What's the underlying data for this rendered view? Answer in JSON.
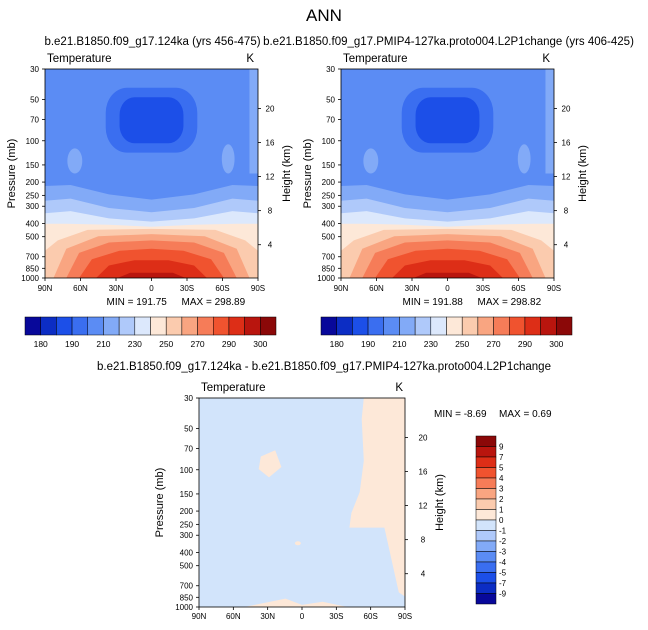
{
  "page_title": "ANN",
  "chart_data": [
    {
      "type": "heatmap",
      "title": "b.e21.B1850.f09_g17.124ka (yrs 456-475)",
      "variable": "Temperature",
      "units": "K",
      "ylabel": "Pressure (mb)",
      "ylabel_right": "Height (km)",
      "x_ticks": [
        "90N",
        "60N",
        "30N",
        "0",
        "30S",
        "60S",
        "90S"
      ],
      "y_ticks": [
        "30",
        "50",
        "70",
        "100",
        "150",
        "200",
        "250",
        "300",
        "400",
        "500",
        "700",
        "850",
        "1000"
      ],
      "height_ticks": [
        "20",
        "16",
        "12",
        "8",
        "4"
      ],
      "min_label": "MIN = 191.75",
      "max_label": "MAX = 298.89",
      "stats": {
        "min": 191.75,
        "max": 298.89
      },
      "colorbar_labels": [
        "180",
        "190",
        "210",
        "230",
        "250",
        "270",
        "290",
        "300"
      ]
    },
    {
      "type": "heatmap",
      "title": "b.e21.B1850.f09_g17.PMIP4-127ka.proto004.L2P1change (yrs 406-425)",
      "variable": "Temperature",
      "units": "K",
      "ylabel": "Pressure (mb)",
      "ylabel_right": "Height (km)",
      "x_ticks": [
        "90N",
        "60N",
        "30N",
        "0",
        "30S",
        "60S",
        "90S"
      ],
      "y_ticks": [
        "30",
        "50",
        "70",
        "100",
        "150",
        "200",
        "250",
        "300",
        "400",
        "500",
        "700",
        "850",
        "1000"
      ],
      "height_ticks": [
        "20",
        "16",
        "12",
        "8",
        "4"
      ],
      "min_label": "MIN = 191.88",
      "max_label": "MAX = 298.82",
      "stats": {
        "min": 191.88,
        "max": 298.82
      },
      "colorbar_labels": [
        "180",
        "190",
        "210",
        "230",
        "250",
        "270",
        "290",
        "300"
      ]
    },
    {
      "type": "heatmap",
      "title": "b.e21.B1850.f09_g17.124ka - b.e21.B1850.f09_g17.PMIP4-127ka.proto004.L2P1change",
      "variable": "Temperature",
      "units": "K",
      "ylabel": "Pressure (mb)",
      "ylabel_right": "Height (km)",
      "x_ticks": [
        "90N",
        "60N",
        "30N",
        "0",
        "30S",
        "60S",
        "90S"
      ],
      "y_ticks": [
        "30",
        "50",
        "70",
        "100",
        "150",
        "200",
        "250",
        "300",
        "400",
        "500",
        "700",
        "850",
        "1000"
      ],
      "height_ticks": [
        "20",
        "16",
        "12",
        "8",
        "4"
      ],
      "min_label": "MIN = -8.69",
      "max_label": "MAX = 0.69",
      "stats": {
        "min": -8.69,
        "max": 0.69
      },
      "colorbar_labels": [
        "9",
        "7",
        "5",
        "4",
        "3",
        "2",
        "1",
        "0",
        "-1",
        "-2",
        "-3",
        "-4",
        "-5",
        "-7",
        "-9"
      ]
    }
  ],
  "colors": {
    "temp_palette": [
      "#08089a",
      "#0c2dc4",
      "#1c4fe8",
      "#3a6ef0",
      "#5b8cf4",
      "#82aaf7",
      "#afc9fa",
      "#dce8fc",
      "#fde8d8",
      "#fbcbae",
      "#f9a581",
      "#f67c58",
      "#f0532f",
      "#dd2e17",
      "#b9150e",
      "#8b0808"
    ],
    "diff_palette": [
      "#08089a",
      "#0c2dc4",
      "#1c4fe8",
      "#3a6ef0",
      "#5b8cf4",
      "#82aaf7",
      "#afc9fa",
      "#d2e4fb",
      "#fde8d8",
      "#fbcbae",
      "#f9a581",
      "#f67c58",
      "#f0532f",
      "#dd2e17",
      "#b9150e",
      "#8b0808"
    ],
    "diff_background": "#d2e4fb",
    "diff_positive": "#fde8d8"
  }
}
